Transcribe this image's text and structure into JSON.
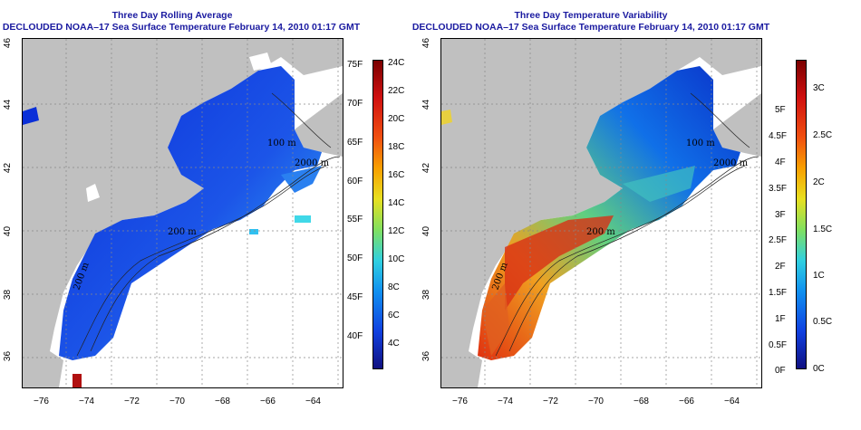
{
  "left_panel": {
    "title_line1": "Three Day Rolling Average",
    "title_line2": "DECLOUDED NOAA–17 Sea Surface Temperature February 14, 2010 01:17 GMT",
    "x_ticks": [
      "−76",
      "−74",
      "−72",
      "−70",
      "−68",
      "−66",
      "−64"
    ],
    "y_ticks": [
      "46",
      "44",
      "42",
      "40",
      "38",
      "36"
    ],
    "contour_labels": [
      "200 m",
      "2000 m",
      "100 m",
      "200 m"
    ],
    "colorbar": {
      "celsius": [
        "24C",
        "22C",
        "20C",
        "18C",
        "16C",
        "14C",
        "12C",
        "10C",
        "8C",
        "6C",
        "4C"
      ],
      "fahrenheit": [
        "75F",
        "70F",
        "65F",
        "60F",
        "55F",
        "50F",
        "45F",
        "40F"
      ]
    }
  },
  "right_panel": {
    "title_line1": "Three Day Temperature Variability",
    "title_line2": "DECLOUDED NOAA–17 Sea Surface Temperature February 14, 2010 01:17 GMT",
    "x_ticks": [
      "−76",
      "−74",
      "−72",
      "−70",
      "−68",
      "−66",
      "−64"
    ],
    "y_ticks": [
      "46",
      "44",
      "42",
      "40",
      "38",
      "36"
    ],
    "contour_labels": [
      "200 m",
      "2000 m",
      "100 m",
      "200 m"
    ],
    "colorbar": {
      "celsius": [
        "3C",
        "2.5C",
        "2C",
        "1.5C",
        "1C",
        "0.5C",
        "0C"
      ],
      "fahrenheit": [
        "5F",
        "4.5F",
        "4F",
        "3.5F",
        "3F",
        "2.5F",
        "2F",
        "1.5F",
        "1F",
        "0.5F",
        "0F"
      ]
    }
  },
  "colors": {
    "title": "#1a1aa0",
    "land": "#c0c0c0",
    "cold": "#0a2fd8",
    "hot": "#d01010"
  }
}
